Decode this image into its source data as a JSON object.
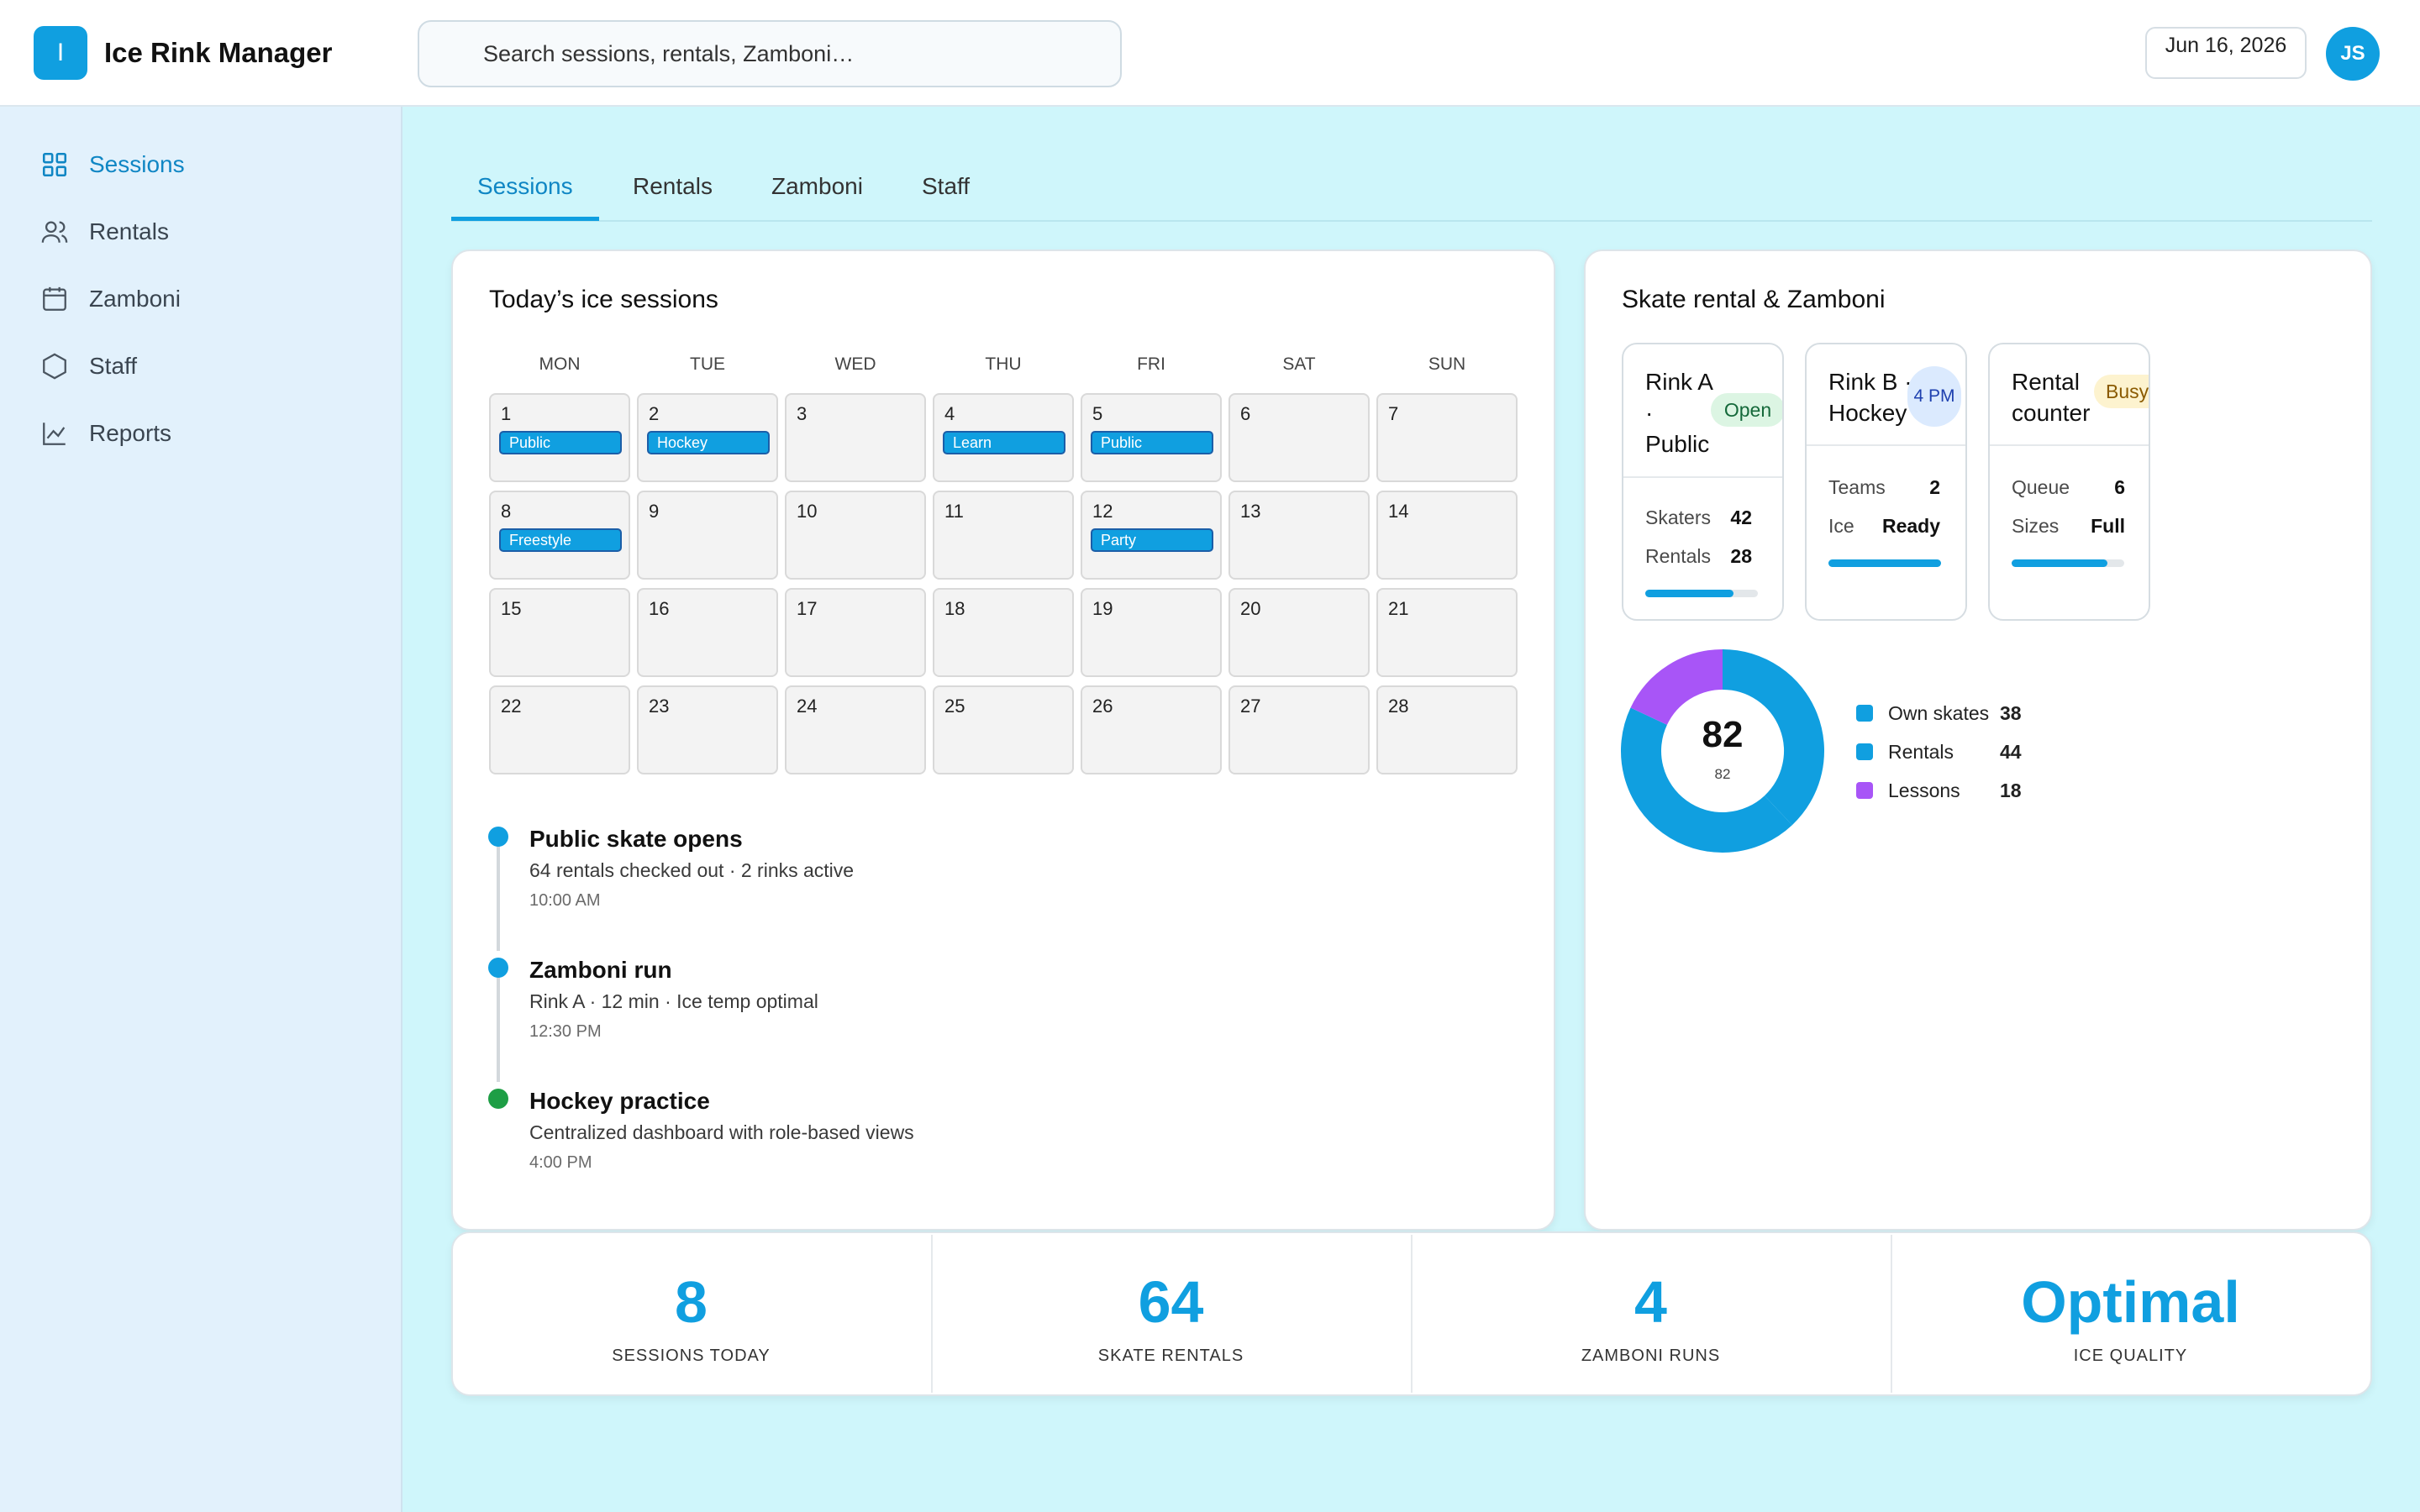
{
  "app": {
    "logo_letter": "I",
    "title": "Ice Rink Manager"
  },
  "search": {
    "placeholder": "Search sessions, rentals, Zamboni…"
  },
  "header": {
    "date": "Jun 16, 2026",
    "avatar_initials": "JS"
  },
  "sidebar": {
    "items": [
      {
        "label": "Sessions",
        "icon": "grid-icon",
        "active": true
      },
      {
        "label": "Rentals",
        "icon": "users-icon",
        "active": false
      },
      {
        "label": "Zamboni",
        "icon": "calendar-icon",
        "active": false
      },
      {
        "label": "Staff",
        "icon": "hexagon-icon",
        "active": false
      },
      {
        "label": "Reports",
        "icon": "chart-line-icon",
        "active": false
      }
    ]
  },
  "tabs": [
    {
      "label": "Sessions",
      "active": true
    },
    {
      "label": "Rentals",
      "active": false
    },
    {
      "label": "Zamboni",
      "active": false
    },
    {
      "label": "Staff",
      "active": false
    }
  ],
  "sessions_card": {
    "title": "Today’s ice sessions",
    "weekdays": [
      "MON",
      "TUE",
      "WED",
      "THU",
      "FRI",
      "SAT",
      "SUN"
    ],
    "days": [
      {
        "n": "1",
        "event": "Public"
      },
      {
        "n": "2",
        "event": "Hockey"
      },
      {
        "n": "3",
        "event": ""
      },
      {
        "n": "4",
        "event": "Learn"
      },
      {
        "n": "5",
        "event": "Public"
      },
      {
        "n": "6",
        "event": ""
      },
      {
        "n": "7",
        "event": ""
      },
      {
        "n": "8",
        "event": "Freestyle"
      },
      {
        "n": "9",
        "event": ""
      },
      {
        "n": "10",
        "event": ""
      },
      {
        "n": "11",
        "event": ""
      },
      {
        "n": "12",
        "event": "Party"
      },
      {
        "n": "13",
        "event": ""
      },
      {
        "n": "14",
        "event": ""
      },
      {
        "n": "15",
        "event": ""
      },
      {
        "n": "16",
        "event": ""
      },
      {
        "n": "17",
        "event": ""
      },
      {
        "n": "18",
        "event": ""
      },
      {
        "n": "19",
        "event": ""
      },
      {
        "n": "20",
        "event": ""
      },
      {
        "n": "21",
        "event": ""
      },
      {
        "n": "22",
        "event": ""
      },
      {
        "n": "23",
        "event": ""
      },
      {
        "n": "24",
        "event": ""
      },
      {
        "n": "25",
        "event": ""
      },
      {
        "n": "26",
        "event": ""
      },
      {
        "n": "27",
        "event": ""
      },
      {
        "n": "28",
        "event": ""
      }
    ],
    "timeline": [
      {
        "title": "Public skate opens",
        "desc": "64 rentals checked out · 2 rinks active",
        "time": "10:00 AM",
        "color": "#109fe0"
      },
      {
        "title": "Zamboni run",
        "desc": "Rink A · 12 min · Ice temp optimal",
        "time": "12:30 PM",
        "color": "#109fe0"
      },
      {
        "title": "Hockey practice",
        "desc": "Centralized dashboard with role-based views",
        "time": "4:00 PM",
        "color": "#1e9e45"
      }
    ]
  },
  "rental_card": {
    "title": "Skate rental & Zamboni",
    "rinks": [
      {
        "title_lines": [
          "Rink A",
          "·",
          "Public"
        ],
        "badge": "Open",
        "badge_bg": "#dcf5e3",
        "badge_fg": "#15693a",
        "rows": [
          {
            "label": "Skaters",
            "value": "42"
          },
          {
            "label": "Rentals",
            "value": "28"
          }
        ],
        "progress": 0.78
      },
      {
        "title_lines": [
          "Rink B ·",
          "Hockey"
        ],
        "badge": "4 PM",
        "badge_bg": "#dbeafe",
        "badge_fg": "#1e40af",
        "rows": [
          {
            "label": "Teams",
            "value": "2"
          },
          {
            "label": "Ice",
            "value": "Ready"
          }
        ],
        "progress": 1.0
      },
      {
        "title_lines": [
          "Rental",
          "counter"
        ],
        "badge": "Busy",
        "badge_bg": "#fdf3cf",
        "badge_fg": "#8a5a00",
        "rows": [
          {
            "label": "Queue",
            "value": "6"
          },
          {
            "label": "Sizes",
            "value": "Full"
          }
        ],
        "progress": 0.85
      }
    ],
    "donut": {
      "center_value": "82",
      "center_sub": "82",
      "segments": [
        {
          "label": "Own skates",
          "value": 38,
          "color": "#109fe0"
        },
        {
          "label": "Rentals",
          "value": 44,
          "color": "#109fe0"
        },
        {
          "label": "Lessons",
          "value": 18,
          "color": "#a855f7"
        }
      ]
    }
  },
  "stats": [
    {
      "value": "8",
      "label": "SESSIONS TODAY"
    },
    {
      "value": "64",
      "label": "SKATE RENTALS"
    },
    {
      "value": "4",
      "label": "ZAMBONI RUNS"
    },
    {
      "value": "Optimal",
      "label": "ICE QUALITY"
    }
  ]
}
